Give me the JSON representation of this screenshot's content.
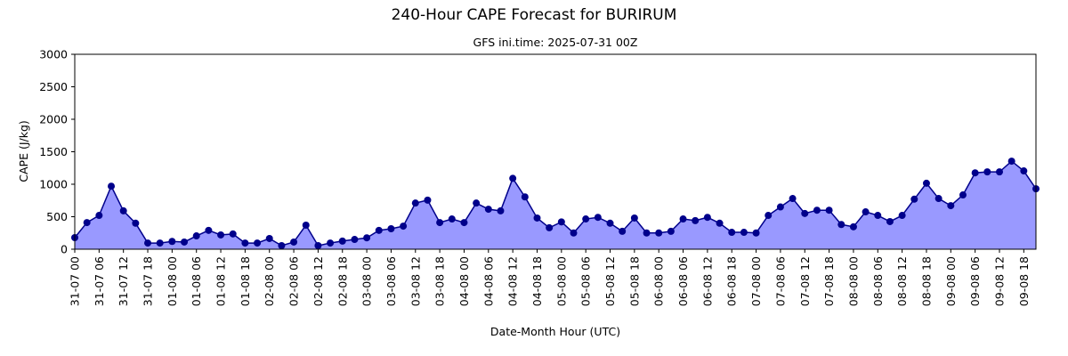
{
  "chart_data": {
    "type": "area-line",
    "title": "240-Hour CAPE Forecast for BURIRUM",
    "subtitle": "GFS ini.time: 2025-07-31 00Z",
    "xlabel": "Date-Month Hour (UTC)",
    "ylabel": "CAPE (J/kg)",
    "categories": [
      "31-07 00",
      null,
      "31-07 06",
      null,
      "31-07 12",
      null,
      "31-07 18",
      null,
      "01-08 00",
      null,
      "01-08 06",
      null,
      "01-08 12",
      null,
      "01-08 18",
      null,
      "02-08 00",
      null,
      "02-08 06",
      null,
      "02-08 12",
      null,
      "02-08 18",
      null,
      "03-08 00",
      null,
      "03-08 06",
      null,
      "03-08 12",
      null,
      "03-08 18",
      null,
      "04-08 00",
      null,
      "04-08 06",
      null,
      "04-08 12",
      null,
      "04-08 18",
      null,
      "05-08 00",
      null,
      "05-08 06",
      null,
      "05-08 12",
      null,
      "05-08 18",
      null,
      "06-08 00",
      null,
      "06-08 06",
      null,
      "06-08 12",
      null,
      "06-08 18",
      null,
      "07-08 00",
      null,
      "07-08 06",
      null,
      "07-08 12",
      null,
      "07-08 18",
      null,
      "08-08 00",
      null,
      "08-08 06",
      null,
      "08-08 12",
      null,
      "08-08 18",
      null,
      "09-08 00",
      null,
      "09-08 06",
      null,
      "09-08 12",
      null,
      "09-08 18",
      null
    ],
    "values": [
      178,
      410,
      520,
      970,
      590,
      400,
      95,
      95,
      120,
      110,
      205,
      290,
      220,
      235,
      95,
      95,
      165,
      55,
      110,
      370,
      55,
      95,
      125,
      150,
      175,
      290,
      315,
      355,
      710,
      755,
      410,
      465,
      410,
      710,
      615,
      590,
      1090,
      805,
      480,
      330,
      420,
      250,
      465,
      490,
      400,
      275,
      480,
      250,
      250,
      275,
      465,
      440,
      490,
      400,
      260,
      260,
      250,
      520,
      650,
      780,
      550,
      600,
      600,
      380,
      345,
      575,
      520,
      425,
      520,
      770,
      1015,
      780,
      670,
      835,
      1175,
      1190,
      1190,
      1355,
      1205,
      930
    ],
    "color": "#00008b",
    "fill_color": "#9999ff",
    "ylim": [
      0,
      3000
    ],
    "yticks": [
      0,
      500,
      1000,
      1500,
      2000,
      2500,
      3000
    ],
    "grid": false
  }
}
